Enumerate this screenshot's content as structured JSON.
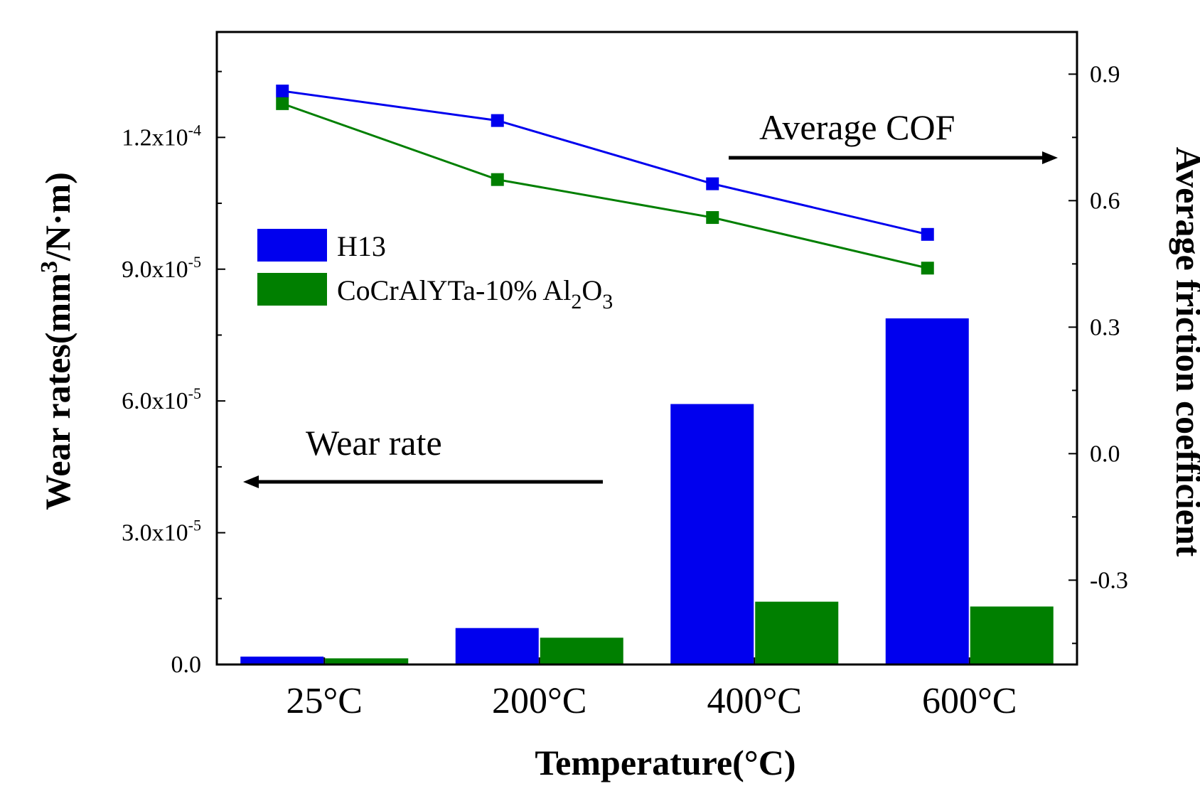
{
  "chart_data": {
    "type": "bar+line",
    "categories": [
      "25°C",
      "200°C",
      "400°C",
      "600°C"
    ],
    "xlabel": "Temperature(°C)",
    "ylabel_left": {
      "pre": "Wear rates(mm",
      "sup": "3",
      "post": "/N·m)"
    },
    "ylabel_right": "Average friction coefficient",
    "y_left": {
      "lim": [
        0,
        0.000144
      ],
      "ticks": [
        {
          "value": 0,
          "mantissa": "0.0",
          "exp": ""
        },
        {
          "value": 3e-05,
          "mantissa": "3.0x10",
          "exp": "-5"
        },
        {
          "value": 6e-05,
          "mantissa": "6.0x10",
          "exp": "-5"
        },
        {
          "value": 9e-05,
          "mantissa": "9.0x10",
          "exp": "-5"
        },
        {
          "value": 0.00012,
          "mantissa": "1.2x10",
          "exp": "-4"
        }
      ]
    },
    "y_right": {
      "lim": [
        -0.5,
        1.0
      ],
      "ticks": [
        {
          "value": -0.3,
          "label": "-0.3"
        },
        {
          "value": 0.0,
          "label": "0.0"
        },
        {
          "value": 0.3,
          "label": "0.3"
        },
        {
          "value": 0.6,
          "label": "0.6"
        },
        {
          "value": 0.9,
          "label": "0.9"
        }
      ]
    },
    "bar_series": [
      {
        "name": "H13",
        "color": "#0000ee",
        "values": [
          1.8e-06,
          8.3e-06,
          5.93e-05,
          7.88e-05
        ]
      },
      {
        "name": "CoCrAlYTa-10% Al2O3",
        "color": "#007f00",
        "values": [
          1.4e-06,
          6.1e-06,
          1.43e-05,
          1.32e-05
        ]
      }
    ],
    "line_series": [
      {
        "name": "H13 COF",
        "color": "#0000ee",
        "values": [
          0.86,
          0.79,
          0.64,
          0.52
        ]
      },
      {
        "name": "CoCrAlYTa-10% Al2O3 COF",
        "color": "#007f00",
        "values": [
          0.83,
          0.65,
          0.56,
          0.44
        ]
      }
    ],
    "legend": [
      {
        "label": "H13",
        "color": "#0000ee",
        "main": "H13",
        "sub1": "",
        "sub2": "",
        "sub3": "",
        "sub4": ""
      },
      {
        "label": "CoCrAlYTa-10% Al2O3",
        "color": "#007f00",
        "main": "CoCrAlYTa-10% Al",
        "sub1": "2",
        "sub2": "O",
        "sub3": "3",
        "sub4": ""
      }
    ],
    "annotations": {
      "cof": "Average COF",
      "wear": "Wear rate"
    }
  }
}
